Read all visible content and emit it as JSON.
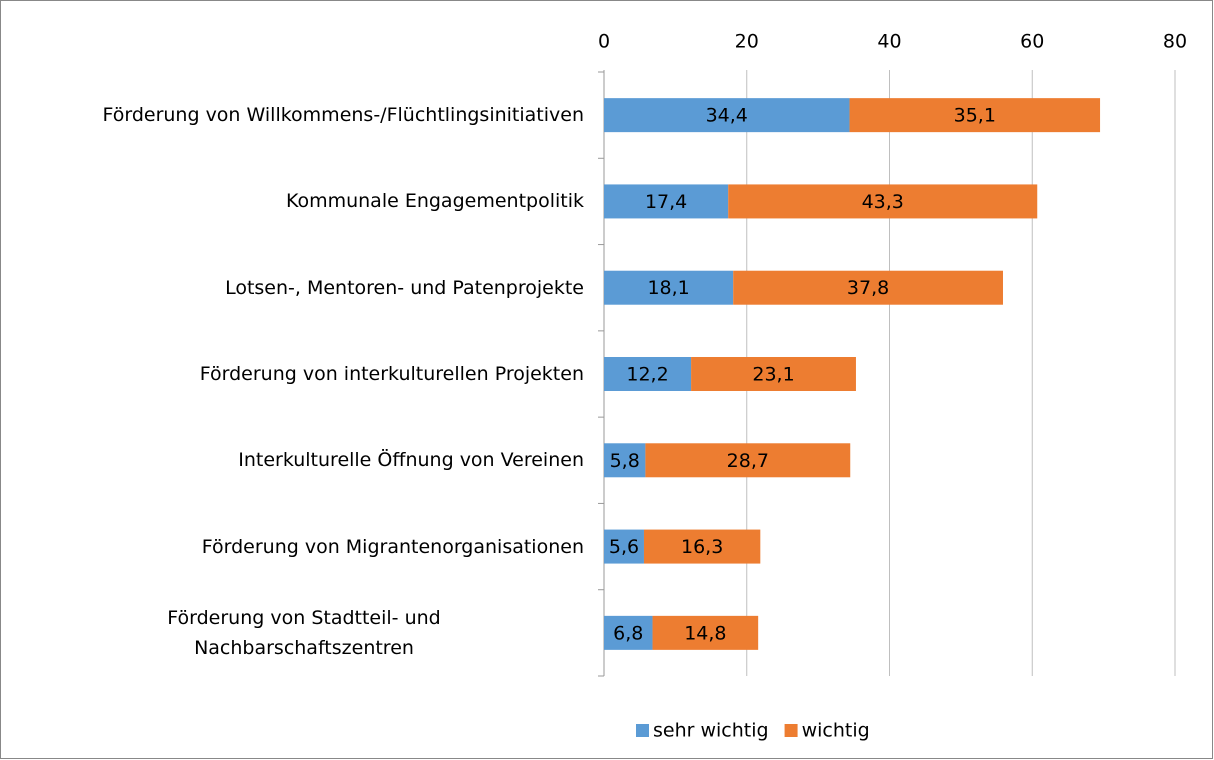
{
  "chart_data": {
    "type": "stacked_barh",
    "categories": [
      "Förderung von Willkommens-/Flüchtlingsinitiativen",
      "Kommunale Engagementpolitik",
      "Lotsen-, Mentoren- und Patenprojekte",
      "Förderung von interkulturellen Projekten",
      "Interkulturelle Öffnung von Vereinen",
      "Förderung von Migrantenorganisationen",
      "Förderung von Stadtteil- und\nNachbarschaftszentren"
    ],
    "series": [
      {
        "name": "sehr wichtig",
        "color": "#5b9bd5",
        "values": [
          34.4,
          17.4,
          18.1,
          12.2,
          5.8,
          5.6,
          6.8
        ],
        "value_labels": [
          "34,4",
          "17,4",
          "18,1",
          "12,2",
          "5,8",
          "5,6",
          "6,8"
        ]
      },
      {
        "name": "wichtig",
        "color": "#ed7d31",
        "values": [
          35.1,
          43.3,
          37.8,
          23.1,
          28.7,
          16.3,
          14.8
        ],
        "value_labels": [
          "35,1",
          "43,3",
          "37,8",
          "23,1",
          "28,7",
          "16,3",
          "14,8"
        ]
      }
    ],
    "xlim": [
      0,
      80
    ],
    "xticks": [
      0,
      20,
      40,
      60,
      80
    ],
    "grid": true,
    "legend": "bottom"
  }
}
